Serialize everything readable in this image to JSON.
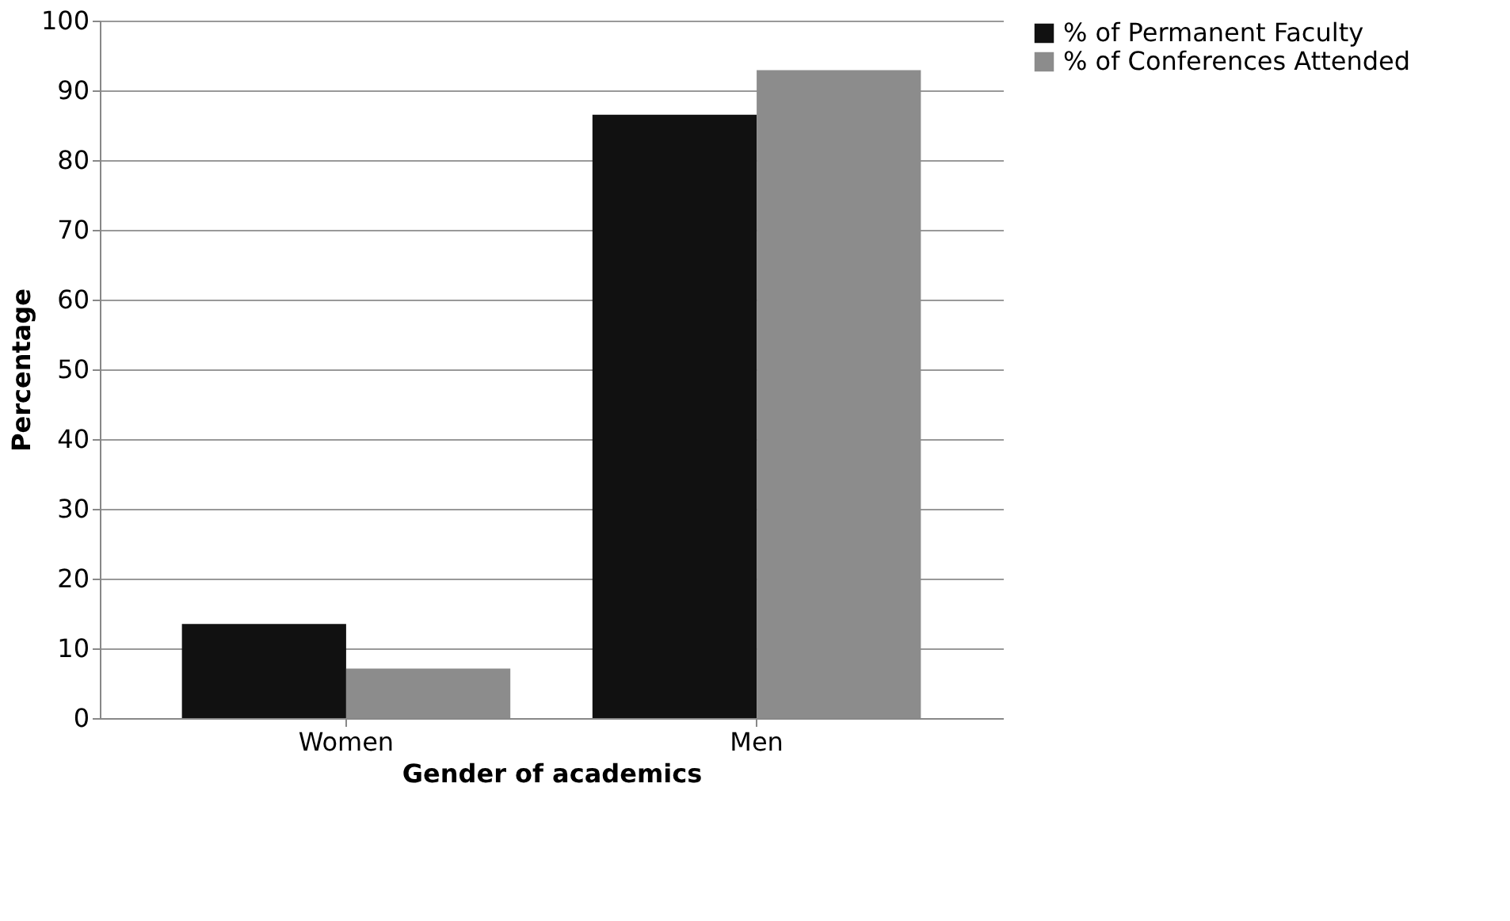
{
  "chart_data": {
    "type": "bar",
    "xlabel": "Gender of academics",
    "ylabel": "Percentage",
    "categories": [
      "Women",
      "Men"
    ],
    "series": [
      {
        "name": "% of Permanent Faculty",
        "color": "#111111",
        "values": [
          13.5,
          86.5
        ]
      },
      {
        "name": "% of Conferences Attended",
        "color": "#8c8c8c",
        "values": [
          7.1,
          92.9
        ]
      }
    ],
    "ylim": [
      0,
      100
    ],
    "yticks": [
      0,
      10,
      20,
      30,
      40,
      50,
      60,
      70,
      80,
      90,
      100
    ],
    "grid": "y",
    "legend": "right"
  }
}
